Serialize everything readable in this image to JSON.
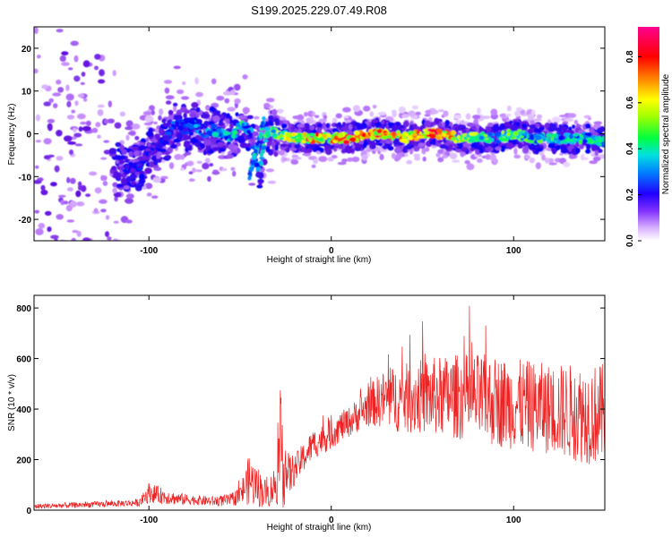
{
  "figure_title": "S199.2025.229.07.49.R08",
  "chart_data": [
    {
      "type": "heatmap",
      "title": "",
      "xlabel": "Height of straight line (km)",
      "ylabel": "Frequency (Hz)",
      "xlim": [
        -163,
        150
      ],
      "ylim": [
        -25,
        25
      ],
      "x_ticks": [
        -100,
        0,
        100
      ],
      "x_tick_labels": [
        "-100",
        "0",
        "100"
      ],
      "y_ticks": [
        -20,
        -10,
        0,
        10,
        20
      ],
      "y_tick_labels": [
        "-20",
        "-10",
        "0",
        "10",
        "20"
      ],
      "colorbar": {
        "label": "Normalized spectral amplitude",
        "range": [
          0,
          0.93
        ],
        "ticks": [
          0.0,
          0.2,
          0.4,
          0.6,
          0.8
        ],
        "tick_labels": [
          "0.0",
          "0.2",
          "0.4",
          "0.6",
          "0.8"
        ],
        "colors": [
          "#ffffff",
          "#c080ff",
          "#6010e0",
          "#0000ff",
          "#00c0ff",
          "#00ff60",
          "#80ff00",
          "#ffff00",
          "#ff8000",
          "#ff0000",
          "#ff0080"
        ]
      },
      "ridge": {
        "description_points_km": [
          -163,
          -150,
          -140,
          -130,
          -120,
          -112,
          -105,
          -100,
          -95,
          -90,
          -85,
          -80,
          -75,
          -70,
          -65,
          -60,
          -55,
          -50,
          -45,
          -40,
          -35,
          -30,
          -20,
          -10,
          0,
          10,
          20,
          30,
          40,
          50,
          60,
          70,
          80,
          90,
          100,
          110,
          120,
          130,
          140,
          150
        ],
        "frequency_hz": [
          0,
          0,
          -3,
          -6,
          -7,
          -8,
          -8,
          -4,
          -3,
          -1,
          3,
          1,
          2,
          0,
          1,
          0,
          -1,
          2,
          1,
          -9,
          1,
          0,
          -1,
          -1,
          -1,
          -1,
          0,
          0,
          -1,
          0,
          0,
          -1,
          -1,
          -1,
          0,
          -1,
          -1,
          -1,
          -1,
          -2
        ],
        "peak_amplitude": [
          0.1,
          0.12,
          0.2,
          0.25,
          0.28,
          0.3,
          0.3,
          0.3,
          0.28,
          0.3,
          0.35,
          0.3,
          0.4,
          0.35,
          0.4,
          0.45,
          0.4,
          0.5,
          0.45,
          0.35,
          0.55,
          0.6,
          0.7,
          0.85,
          0.8,
          0.85,
          0.9,
          0.85,
          0.8,
          0.9,
          0.9,
          0.7,
          0.6,
          0.55,
          0.6,
          0.5,
          0.55,
          0.45,
          0.5,
          0.45
        ]
      }
    },
    {
      "type": "line",
      "title": "",
      "xlabel": "Height of straight line (km)",
      "ylabel": "SNR (10 * v/v)",
      "xlim": [
        -163,
        150
      ],
      "ylim": [
        0,
        850
      ],
      "x_ticks": [
        -100,
        0,
        100
      ],
      "x_tick_labels": [
        "-100",
        "0",
        "100"
      ],
      "y_ticks": [
        0,
        200,
        400,
        600,
        800
      ],
      "y_tick_labels": [
        "0",
        "200",
        "400",
        "600",
        "800"
      ],
      "series": [
        {
          "name": "SNR",
          "color": "#ee2222",
          "envelope_x": [
            -163,
            -140,
            -120,
            -105,
            -100,
            -95,
            -85,
            -75,
            -65,
            -55,
            -50,
            -45,
            -40,
            -35,
            -30,
            -27,
            -24,
            -20,
            -15,
            -10,
            -5,
            0,
            5,
            10,
            15,
            20,
            25,
            30,
            40,
            50,
            60,
            70,
            80,
            90,
            100,
            110,
            120,
            130,
            140,
            150
          ],
          "envelope_mean": [
            15,
            20,
            25,
            30,
            70,
            60,
            45,
            40,
            35,
            40,
            60,
            120,
            90,
            60,
            110,
            250,
            130,
            160,
            210,
            260,
            280,
            300,
            330,
            350,
            380,
            410,
            430,
            440,
            440,
            450,
            450,
            450,
            440,
            430,
            420,
            410,
            400,
            390,
            380,
            380
          ],
          "envelope_spread": [
            10,
            12,
            12,
            15,
            40,
            35,
            25,
            20,
            20,
            25,
            40,
            100,
            80,
            50,
            90,
            250,
            100,
            60,
            60,
            60,
            60,
            60,
            60,
            60,
            70,
            80,
            100,
            120,
            140,
            150,
            160,
            170,
            180,
            180,
            180,
            180,
            180,
            190,
            200,
            200
          ]
        }
      ]
    }
  ]
}
